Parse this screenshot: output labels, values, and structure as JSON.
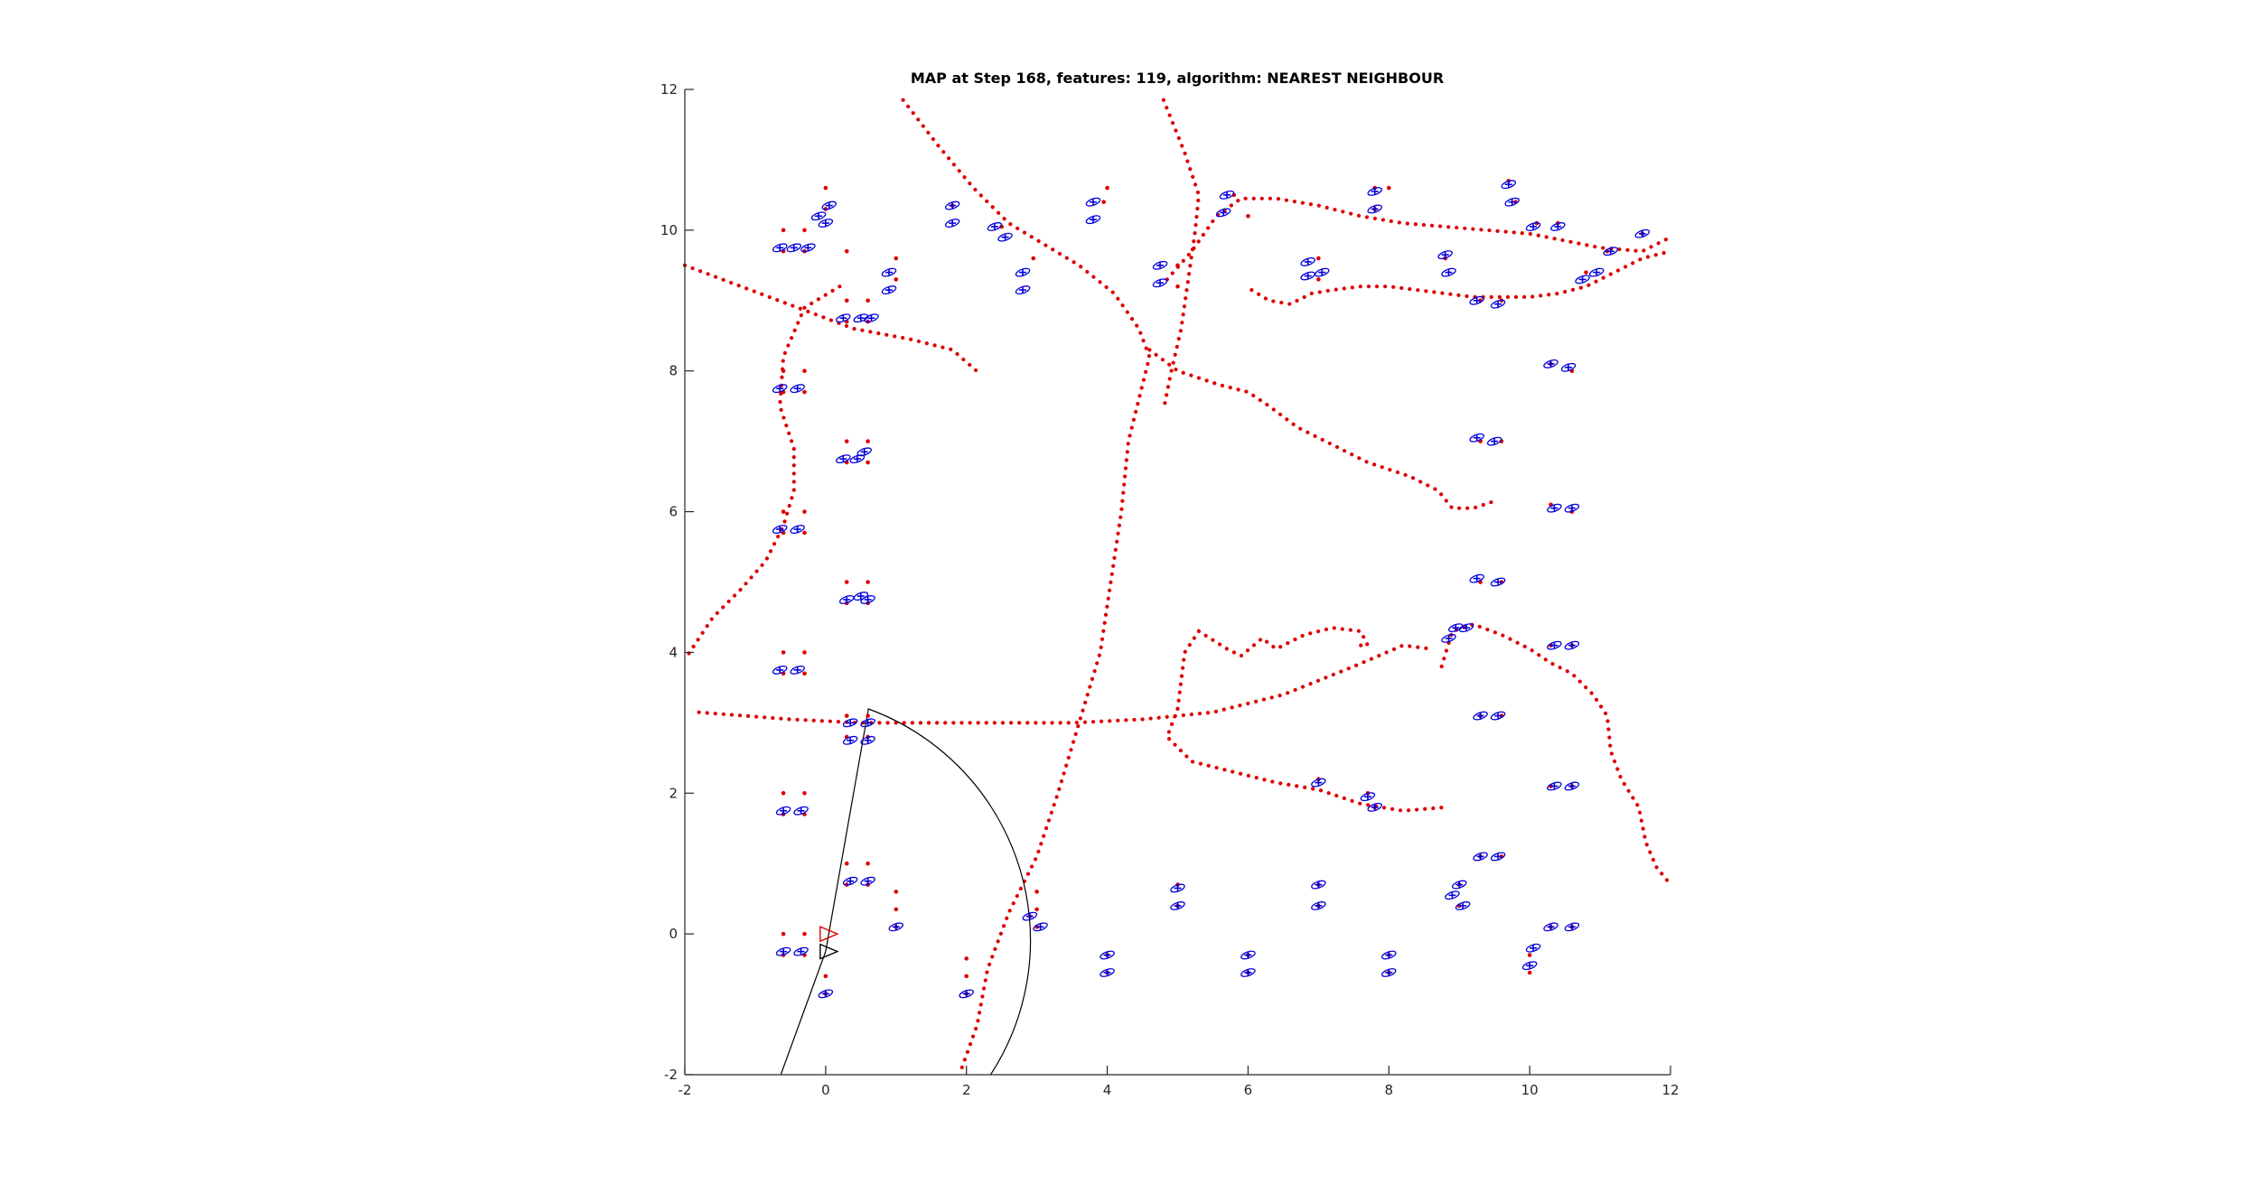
{
  "chart_data": {
    "type": "scatter",
    "title": "MAP at Step 168, features: 119, algorithm: NEAREST NEIGHBOUR",
    "xlabel": "",
    "ylabel": "",
    "xlim": [
      -2,
      12
    ],
    "ylim": [
      -2,
      12
    ],
    "x_ticks": [
      -2,
      0,
      2,
      4,
      6,
      8,
      10,
      12
    ],
    "y_ticks": [
      -2,
      0,
      2,
      4,
      6,
      8,
      10,
      12
    ],
    "x_tick_labels": [
      "-2",
      "0",
      "2",
      "4",
      "6",
      "8",
      "10",
      "12"
    ],
    "y_tick_labels": [
      "-2",
      "0",
      "2",
      "4",
      "6",
      "8",
      "10",
      "12"
    ],
    "grid": false,
    "legend": "none",
    "colors": {
      "trajectory": "#dd0000",
      "landmark_true": "#dd0000",
      "landmark_estimate": "#0000dd",
      "sensor_range": "#000000",
      "axes": "#262626"
    },
    "trajectories": [
      {
        "points": [
          [
            1.1,
            11.85
          ],
          [
            1.6,
            11.2
          ],
          [
            2.1,
            10.6
          ],
          [
            2.6,
            10.1
          ],
          [
            3.1,
            9.8
          ],
          [
            3.6,
            9.5
          ],
          [
            4.1,
            9.1
          ],
          [
            4.45,
            8.6
          ],
          [
            4.6,
            8.2
          ],
          [
            4.5,
            7.8
          ],
          [
            4.3,
            7.0
          ],
          [
            4.2,
            6.0
          ],
          [
            4.05,
            5.0
          ],
          [
            3.9,
            4.0
          ],
          [
            3.6,
            3.0
          ],
          [
            3.3,
            2.0
          ],
          [
            3.0,
            1.1
          ],
          [
            2.6,
            0.3
          ],
          [
            2.3,
            -0.5
          ],
          [
            2.15,
            -1.3
          ],
          [
            1.9,
            -2.0
          ]
        ]
      },
      {
        "points": [
          [
            4.8,
            11.85
          ],
          [
            5.1,
            11.1
          ],
          [
            5.3,
            10.5
          ],
          [
            5.25,
            10.0
          ],
          [
            5.15,
            9.3
          ],
          [
            5.05,
            8.6
          ],
          [
            4.9,
            7.95
          ],
          [
            4.8,
            7.45
          ]
        ]
      },
      {
        "points": [
          [
            -2.0,
            9.5
          ],
          [
            -1.2,
            9.2
          ],
          [
            -0.4,
            8.9
          ],
          [
            0.4,
            8.6
          ],
          [
            1.2,
            8.45
          ],
          [
            1.8,
            8.3
          ],
          [
            2.2,
            7.95
          ]
        ]
      },
      {
        "points": [
          [
            0.2,
            9.2
          ],
          [
            -0.3,
            8.9
          ],
          [
            -0.6,
            8.2
          ],
          [
            -0.65,
            7.5
          ],
          [
            -0.55,
            7.2
          ],
          [
            -0.45,
            6.9
          ],
          [
            -0.45,
            6.3
          ],
          [
            -0.6,
            5.8
          ],
          [
            -0.85,
            5.3
          ],
          [
            -1.2,
            4.9
          ],
          [
            -1.6,
            4.5
          ],
          [
            -2.0,
            3.9
          ]
        ]
      },
      {
        "points": [
          [
            -1.8,
            3.15
          ],
          [
            -0.5,
            3.05
          ],
          [
            0.5,
            3.0
          ],
          [
            1.5,
            3.0
          ],
          [
            2.5,
            3.0
          ],
          [
            3.5,
            3.0
          ],
          [
            4.5,
            3.05
          ],
          [
            5.5,
            3.15
          ],
          [
            6.5,
            3.4
          ],
          [
            7.5,
            3.8
          ],
          [
            8.2,
            4.1
          ],
          [
            8.6,
            4.05
          ]
        ]
      },
      {
        "points": [
          [
            4.85,
            9.3
          ],
          [
            5.2,
            9.7
          ],
          [
            5.55,
            10.2
          ],
          [
            5.9,
            10.45
          ],
          [
            6.4,
            10.45
          ],
          [
            7.0,
            10.35
          ],
          [
            7.6,
            10.2
          ],
          [
            8.2,
            10.1
          ],
          [
            8.8,
            10.05
          ],
          [
            9.4,
            10.0
          ],
          [
            10.0,
            9.95
          ],
          [
            10.5,
            9.85
          ],
          [
            11.0,
            9.75
          ],
          [
            11.6,
            9.7
          ],
          [
            12.0,
            9.9
          ]
        ]
      },
      {
        "points": [
          [
            6.05,
            9.15
          ],
          [
            6.3,
            9.0
          ],
          [
            6.6,
            8.95
          ],
          [
            6.9,
            9.1
          ],
          [
            7.2,
            9.15
          ],
          [
            7.6,
            9.2
          ],
          [
            8.0,
            9.2
          ],
          [
            8.4,
            9.15
          ],
          [
            8.8,
            9.1
          ],
          [
            9.2,
            9.05
          ],
          [
            9.6,
            9.05
          ],
          [
            10.0,
            9.05
          ],
          [
            10.4,
            9.1
          ],
          [
            10.8,
            9.2
          ],
          [
            11.2,
            9.4
          ],
          [
            11.6,
            9.6
          ],
          [
            12.0,
            9.7
          ]
        ]
      },
      {
        "points": [
          [
            4.6,
            8.3
          ],
          [
            5.0,
            8.0
          ],
          [
            5.6,
            7.8
          ],
          [
            6.0,
            7.7
          ],
          [
            6.3,
            7.5
          ],
          [
            6.7,
            7.2
          ],
          [
            7.2,
            6.95
          ],
          [
            7.7,
            6.7
          ],
          [
            8.3,
            6.5
          ],
          [
            8.7,
            6.3
          ],
          [
            8.9,
            6.05
          ],
          [
            9.2,
            6.05
          ],
          [
            9.5,
            6.15
          ]
        ]
      },
      {
        "points": [
          [
            5.0,
            3.2
          ],
          [
            5.1,
            4.0
          ],
          [
            5.3,
            4.3
          ],
          [
            5.7,
            4.05
          ],
          [
            5.9,
            3.95
          ],
          [
            6.2,
            4.2
          ],
          [
            6.4,
            4.05
          ],
          [
            6.8,
            4.25
          ],
          [
            7.2,
            4.35
          ],
          [
            7.6,
            4.3
          ],
          [
            7.7,
            4.1
          ],
          [
            7.55,
            4.1
          ]
        ]
      },
      {
        "points": [
          [
            5.0,
            3.2
          ],
          [
            4.85,
            2.8
          ],
          [
            5.2,
            2.45
          ],
          [
            5.8,
            2.3
          ],
          [
            6.4,
            2.15
          ],
          [
            7.0,
            2.05
          ],
          [
            7.6,
            1.85
          ],
          [
            8.2,
            1.75
          ],
          [
            8.8,
            1.8
          ]
        ]
      },
      {
        "points": [
          [
            8.75,
            3.8
          ],
          [
            8.9,
            4.3
          ],
          [
            9.2,
            4.4
          ],
          [
            9.6,
            4.25
          ],
          [
            10.0,
            4.05
          ],
          [
            10.3,
            3.85
          ],
          [
            10.6,
            3.7
          ],
          [
            10.9,
            3.4
          ],
          [
            11.1,
            3.1
          ],
          [
            11.15,
            2.6
          ],
          [
            11.3,
            2.2
          ],
          [
            11.55,
            1.8
          ],
          [
            11.65,
            1.3
          ],
          [
            11.8,
            0.95
          ],
          [
            12.0,
            0.7
          ]
        ]
      }
    ],
    "landmarks_true": [
      [
        -0.6,
        10.0
      ],
      [
        -0.3,
        10.0
      ],
      [
        -0.6,
        9.7
      ],
      [
        -0.3,
        9.7
      ],
      [
        0.0,
        10.3
      ],
      [
        0.0,
        10.6
      ],
      [
        0.3,
        9.7
      ],
      [
        0.3,
        9.0
      ],
      [
        0.6,
        9.0
      ],
      [
        1.0,
        9.3
      ],
      [
        1.0,
        9.6
      ],
      [
        0.3,
        8.7
      ],
      [
        0.6,
        8.7
      ],
      [
        -0.6,
        8.0
      ],
      [
        -0.3,
        8.0
      ],
      [
        -0.6,
        7.7
      ],
      [
        -0.3,
        7.7
      ],
      [
        0.3,
        7.0
      ],
      [
        0.6,
        7.0
      ],
      [
        0.3,
        6.7
      ],
      [
        0.6,
        6.7
      ],
      [
        -0.6,
        6.0
      ],
      [
        -0.3,
        6.0
      ],
      [
        -0.6,
        5.7
      ],
      [
        -0.3,
        5.7
      ],
      [
        0.3,
        5.0
      ],
      [
        0.6,
        5.0
      ],
      [
        0.3,
        4.7
      ],
      [
        0.6,
        4.7
      ],
      [
        -0.6,
        4.0
      ],
      [
        -0.3,
        4.0
      ],
      [
        -0.6,
        3.7
      ],
      [
        -0.3,
        3.7
      ],
      [
        0.3,
        3.1
      ],
      [
        0.6,
        3.1
      ],
      [
        0.3,
        2.8
      ],
      [
        0.6,
        2.8
      ],
      [
        -0.6,
        2.0
      ],
      [
        -0.3,
        2.0
      ],
      [
        -0.6,
        1.7
      ],
      [
        -0.3,
        1.7
      ],
      [
        0.3,
        1.0
      ],
      [
        0.6,
        1.0
      ],
      [
        0.3,
        0.7
      ],
      [
        0.6,
        0.7
      ],
      [
        1.0,
        0.6
      ],
      [
        1.0,
        0.35
      ],
      [
        1.0,
        0.1
      ],
      [
        3.0,
        0.6
      ],
      [
        3.0,
        0.35
      ],
      [
        2.9,
        0.25
      ],
      [
        3.0,
        0.1
      ],
      [
        -0.6,
        0.0
      ],
      [
        -0.3,
        0.0
      ],
      [
        -0.6,
        -0.3
      ],
      [
        -0.3,
        -0.3
      ],
      [
        0.0,
        -0.6
      ],
      [
        0.0,
        -0.85
      ],
      [
        2.0,
        -0.35
      ],
      [
        2.0,
        -0.6
      ],
      [
        2.0,
        -0.85
      ],
      [
        4.0,
        -0.3
      ],
      [
        4.0,
        -0.55
      ],
      [
        5.0,
        0.7
      ],
      [
        5.0,
        0.4
      ],
      [
        6.0,
        -0.3
      ],
      [
        6.0,
        -0.55
      ],
      [
        7.0,
        0.7
      ],
      [
        7.0,
        0.4
      ],
      [
        8.0,
        -0.3
      ],
      [
        8.0,
        -0.55
      ],
      [
        9.0,
        0.7
      ],
      [
        9.0,
        0.4
      ],
      [
        10.0,
        -0.3
      ],
      [
        10.0,
        -0.55
      ],
      [
        10.3,
        0.1
      ],
      [
        10.6,
        0.1
      ],
      [
        1.8,
        10.35
      ],
      [
        2.5,
        10.05
      ],
      [
        2.95,
        9.6
      ],
      [
        3.95,
        10.4
      ],
      [
        4.0,
        10.6
      ],
      [
        5.0,
        9.5
      ],
      [
        5.0,
        9.2
      ],
      [
        5.8,
        10.5
      ],
      [
        6.0,
        10.2
      ],
      [
        7.8,
        10.6
      ],
      [
        8.0,
        10.6
      ],
      [
        7.8,
        10.3
      ],
      [
        7.0,
        9.6
      ],
      [
        7.0,
        9.3
      ],
      [
        8.8,
        9.6
      ],
      [
        9.7,
        10.7
      ],
      [
        9.8,
        10.4
      ],
      [
        10.1,
        10.1
      ],
      [
        10.4,
        10.1
      ],
      [
        10.8,
        9.4
      ],
      [
        11.1,
        9.7
      ],
      [
        11.6,
        9.95
      ],
      [
        9.3,
        9.0
      ],
      [
        9.6,
        9.0
      ],
      [
        10.3,
        8.1
      ],
      [
        10.6,
        8.0
      ],
      [
        9.3,
        7.0
      ],
      [
        9.6,
        7.0
      ],
      [
        10.3,
        6.1
      ],
      [
        10.6,
        6.0
      ],
      [
        9.3,
        5.0
      ],
      [
        9.6,
        5.0
      ],
      [
        10.3,
        4.1
      ],
      [
        10.6,
        4.1
      ],
      [
        9.3,
        3.1
      ],
      [
        9.6,
        3.1
      ],
      [
        10.3,
        2.1
      ],
      [
        10.6,
        2.1
      ],
      [
        9.3,
        1.1
      ],
      [
        9.6,
        1.1
      ],
      [
        7.0,
        2.2
      ],
      [
        7.7,
        2.0
      ],
      [
        7.8,
        1.8
      ]
    ],
    "landmarks_estimate": [
      [
        -0.65,
        9.75
      ],
      [
        -0.45,
        9.75
      ],
      [
        -0.25,
        9.75
      ],
      [
        0.0,
        10.1
      ],
      [
        -0.1,
        10.2
      ],
      [
        0.05,
        10.35
      ],
      [
        0.25,
        8.75
      ],
      [
        0.5,
        8.75
      ],
      [
        0.65,
        8.75
      ],
      [
        0.9,
        9.15
      ],
      [
        0.9,
        9.4
      ],
      [
        -0.65,
        7.75
      ],
      [
        -0.4,
        7.75
      ],
      [
        0.25,
        6.75
      ],
      [
        0.45,
        6.75
      ],
      [
        0.55,
        6.85
      ],
      [
        -0.65,
        5.75
      ],
      [
        -0.4,
        5.75
      ],
      [
        0.3,
        4.75
      ],
      [
        0.5,
        4.8
      ],
      [
        0.6,
        4.75
      ],
      [
        -0.65,
        3.75
      ],
      [
        -0.4,
        3.75
      ],
      [
        0.35,
        3.0
      ],
      [
        0.6,
        3.0
      ],
      [
        0.35,
        2.75
      ],
      [
        0.6,
        2.75
      ],
      [
        -0.6,
        1.75
      ],
      [
        -0.35,
        1.75
      ],
      [
        0.35,
        0.75
      ],
      [
        0.6,
        0.75
      ],
      [
        1.0,
        0.1
      ],
      [
        3.05,
        0.1
      ],
      [
        2.9,
        0.25
      ],
      [
        -0.6,
        -0.25
      ],
      [
        -0.35,
        -0.25
      ],
      [
        0.0,
        -0.85
      ],
      [
        2.0,
        -0.85
      ],
      [
        4.0,
        -0.3
      ],
      [
        4.0,
        -0.55
      ],
      [
        5.0,
        0.65
      ],
      [
        5.0,
        0.4
      ],
      [
        6.0,
        -0.3
      ],
      [
        6.0,
        -0.55
      ],
      [
        7.0,
        0.7
      ],
      [
        7.0,
        0.4
      ],
      [
        8.0,
        -0.3
      ],
      [
        8.0,
        -0.55
      ],
      [
        8.9,
        0.55
      ],
      [
        9.05,
        0.4
      ],
      [
        9.0,
        0.7
      ],
      [
        10.05,
        -0.2
      ],
      [
        10.0,
        -0.45
      ],
      [
        10.3,
        0.1
      ],
      [
        10.6,
        0.1
      ],
      [
        1.8,
        10.1
      ],
      [
        1.8,
        10.35
      ],
      [
        2.4,
        10.05
      ],
      [
        2.55,
        9.9
      ],
      [
        2.8,
        9.4
      ],
      [
        2.8,
        9.15
      ],
      [
        3.8,
        10.15
      ],
      [
        3.8,
        10.4
      ],
      [
        4.75,
        9.5
      ],
      [
        4.75,
        9.25
      ],
      [
        5.65,
        10.25
      ],
      [
        5.7,
        10.5
      ],
      [
        6.85,
        9.55
      ],
      [
        6.85,
        9.35
      ],
      [
        7.05,
        9.4
      ],
      [
        7.8,
        10.55
      ],
      [
        7.8,
        10.3
      ],
      [
        8.8,
        9.65
      ],
      [
        8.85,
        9.4
      ],
      [
        9.7,
        10.65
      ],
      [
        9.75,
        10.4
      ],
      [
        10.05,
        10.05
      ],
      [
        10.4,
        10.05
      ],
      [
        10.75,
        9.3
      ],
      [
        10.95,
        9.4
      ],
      [
        11.15,
        9.7
      ],
      [
        11.6,
        9.95
      ],
      [
        9.25,
        9.0
      ],
      [
        9.55,
        8.95
      ],
      [
        10.3,
        8.1
      ],
      [
        10.55,
        8.05
      ],
      [
        9.25,
        7.05
      ],
      [
        9.5,
        7.0
      ],
      [
        10.35,
        6.05
      ],
      [
        10.6,
        6.05
      ],
      [
        9.25,
        5.05
      ],
      [
        9.55,
        5.0
      ],
      [
        10.35,
        4.1
      ],
      [
        10.6,
        4.1
      ],
      [
        9.3,
        3.1
      ],
      [
        9.55,
        3.1
      ],
      [
        10.35,
        2.1
      ],
      [
        10.6,
        2.1
      ],
      [
        9.3,
        1.1
      ],
      [
        9.55,
        1.1
      ],
      [
        7.0,
        2.15
      ],
      [
        7.7,
        1.95
      ],
      [
        7.8,
        1.8
      ],
      [
        8.85,
        4.2
      ],
      [
        8.95,
        4.35
      ],
      [
        9.1,
        4.35
      ]
    ],
    "robot_true": {
      "x": 0.0,
      "y": 0.0,
      "heading_deg": 0
    },
    "robot_estimate": {
      "x": 0.0,
      "y": -0.25,
      "heading_deg": 0
    },
    "sensor_range": {
      "x": 0.0,
      "y": -0.25,
      "radius": 3.5,
      "start_angle_deg": -110,
      "end_angle_deg": 80
    }
  }
}
